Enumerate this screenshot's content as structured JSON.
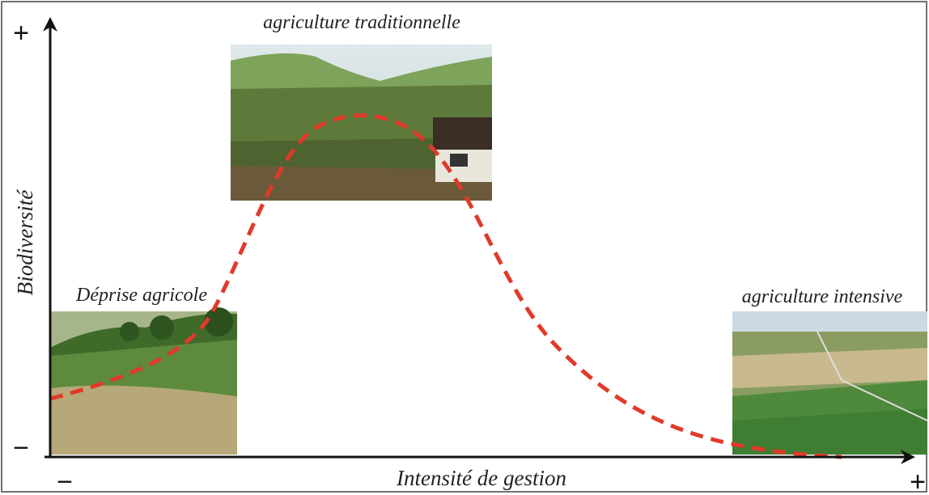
{
  "axes": {
    "y_label": "Biodiversité",
    "x_label": "Intensité de gestion",
    "y_plus": "+",
    "y_minus": "−",
    "x_minus": "−",
    "x_plus": "+"
  },
  "photos": [
    {
      "caption": "Déprise agricole"
    },
    {
      "caption": "agriculture traditionnelle"
    },
    {
      "caption": "agriculture intensive"
    }
  ]
}
